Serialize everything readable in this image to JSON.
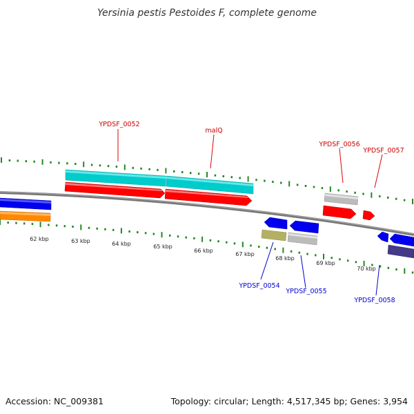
{
  "title": "Yersinia pestis Pestoides F, complete genome",
  "footer": {
    "accession": "Accession: NC_009381",
    "topology": "Topology: circular; Length: 4,517,345 bp; Genes: 3,954"
  },
  "colors": {
    "forward_cds": "#ff0000",
    "forward_gene": "#00cccc",
    "reverse_cds": "#0000ee",
    "reverse_gene": "#ff8800",
    "pseudo_gene": "#bbbbbb",
    "olive_gene": "#b3b066",
    "slate_gene": "#443a88",
    "forward_label": "#cc0000",
    "reverse_label": "#0000cc",
    "tick_color": "#228822",
    "backbone": "#888888"
  },
  "scale_labels": [
    "62 kbp",
    "63 kbp",
    "64 kbp",
    "65 kbp",
    "66 kbp",
    "67 kbp",
    "68 kbp",
    "69 kbp",
    "70 kbp"
  ],
  "genes": {
    "forward": [
      {
        "label": "YPDSF_0052"
      },
      {
        "label": "malQ"
      },
      {
        "label": "YPDSF_0056"
      },
      {
        "label": "YPDSF_0057"
      }
    ],
    "reverse": [
      {
        "label": "YPDSF_0054"
      },
      {
        "label": "YPDSF_0055"
      },
      {
        "label": "YPDSF_0058"
      }
    ]
  }
}
